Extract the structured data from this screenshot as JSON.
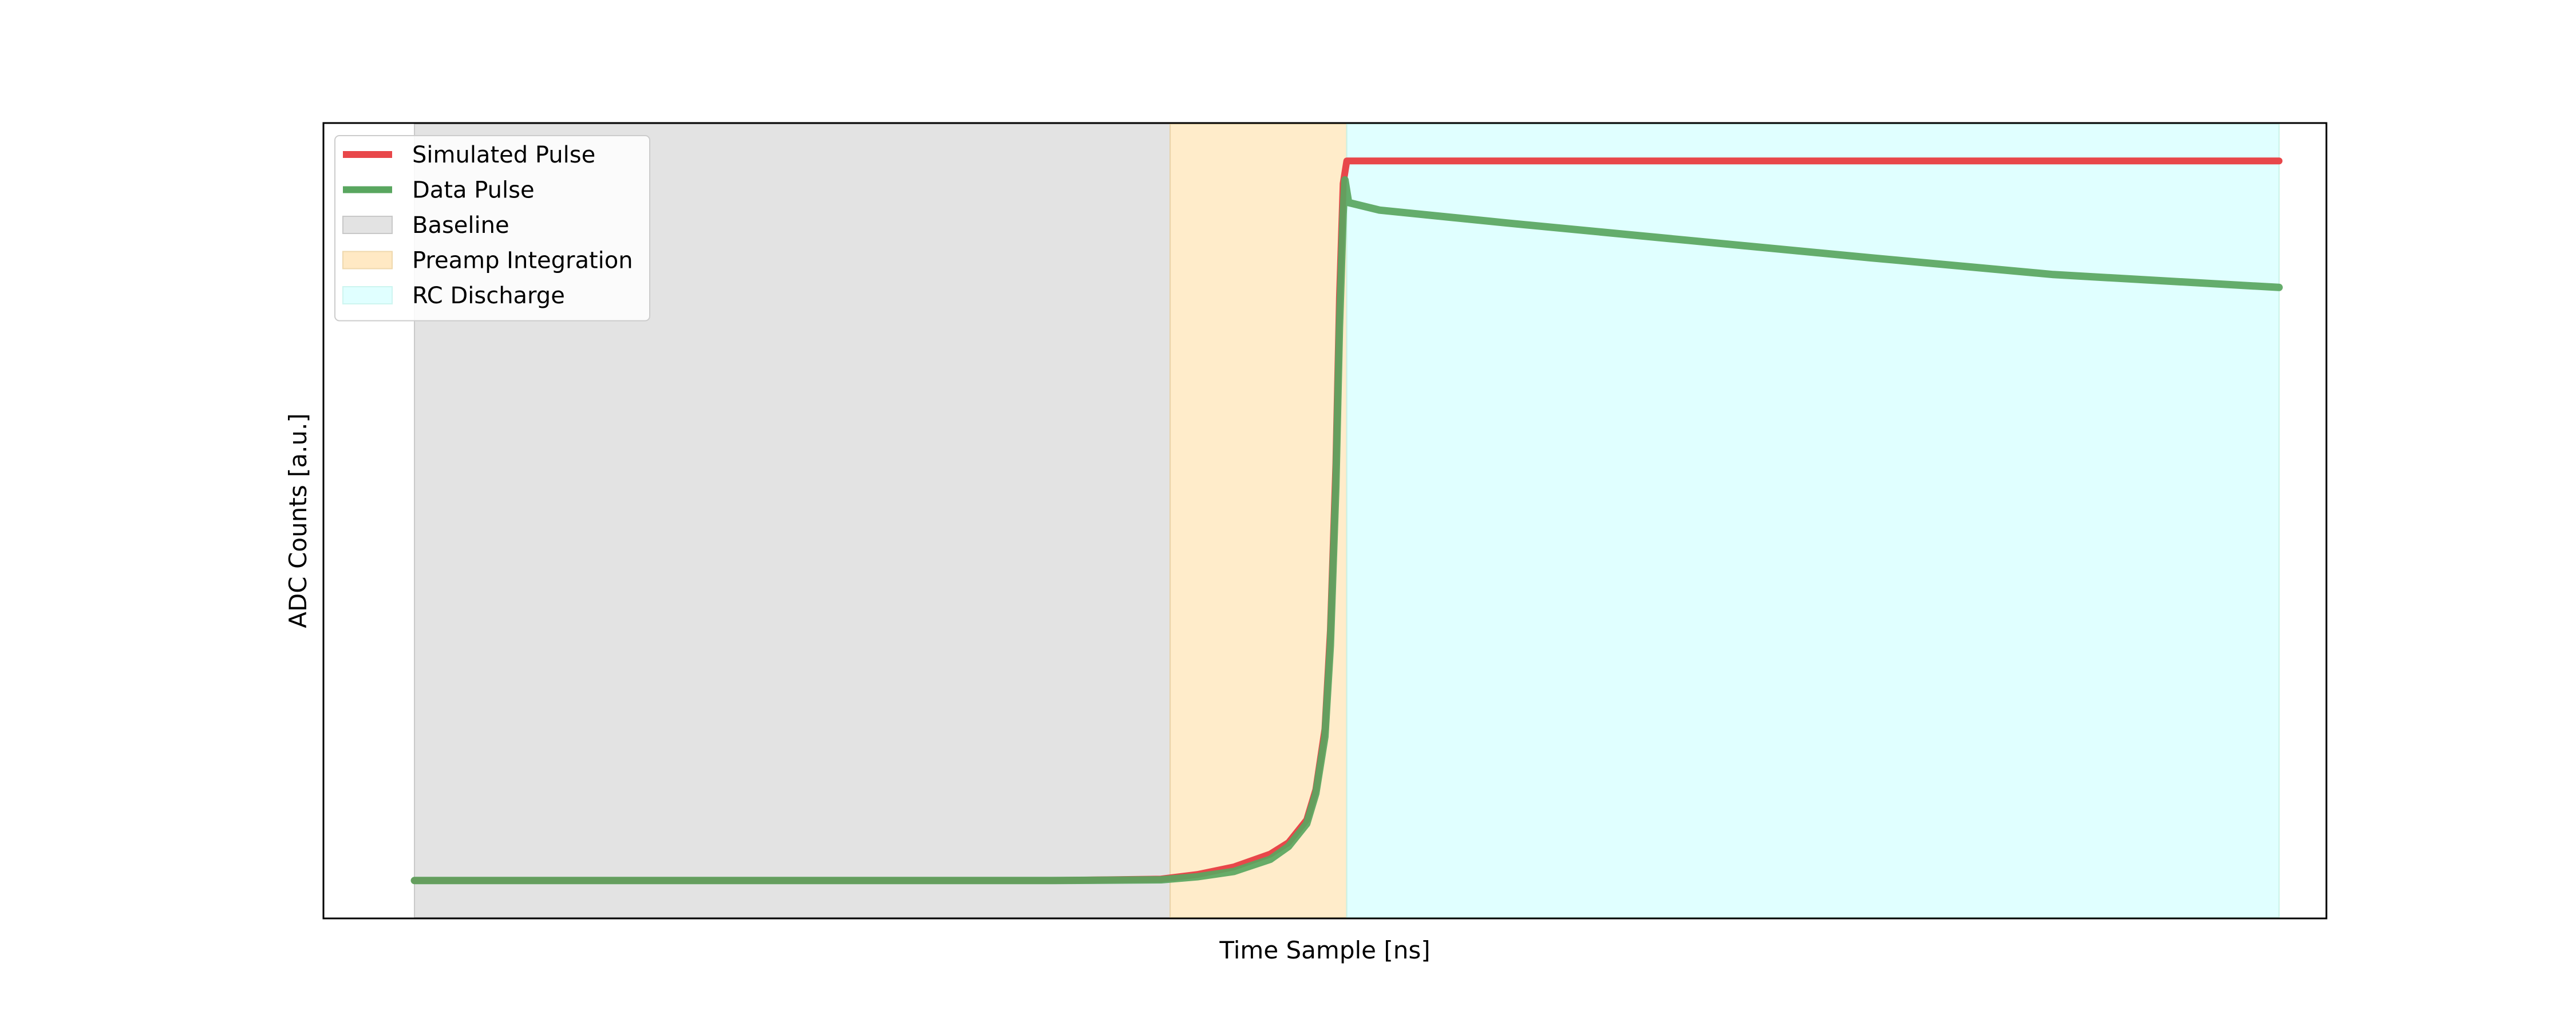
{
  "chart_data": {
    "type": "line",
    "xlabel": "Time Sample [ns]",
    "ylabel": "ADC Counts [a.u.]",
    "x_ticks_shown": false,
    "y_ticks_shown": false,
    "grid": false,
    "legend_placement": "upper-left",
    "xlim": [
      0,
      1100
    ],
    "ylim": [
      0,
      1.05
    ],
    "regions": [
      {
        "name": "Baseline",
        "x_start": 50,
        "x_end": 465,
        "color": "#d3d3d3"
      },
      {
        "name": "Preamp Integration",
        "x_start": 465,
        "x_end": 562,
        "color": "#ffe4b5"
      },
      {
        "name": "RC Discharge",
        "x_start": 562,
        "x_end": 1074,
        "color": "#ccffff"
      }
    ],
    "series": [
      {
        "name": "Simulated Pulse",
        "color": "#e8474a",
        "x": [
          50,
          100,
          200,
          300,
          400,
          460,
          480,
          500,
          520,
          530,
          540,
          545,
          550,
          553,
          556,
          558,
          560,
          562,
          700,
          900,
          1074
        ],
        "y": [
          0.05,
          0.05,
          0.05,
          0.05,
          0.05,
          0.052,
          0.058,
          0.068,
          0.085,
          0.1,
          0.13,
          0.17,
          0.25,
          0.38,
          0.6,
          0.82,
          0.97,
          1.0,
          1.0,
          1.0,
          1.0
        ]
      },
      {
        "name": "Data Pulse",
        "color": "#59a65f",
        "x": [
          50,
          100,
          200,
          300,
          400,
          460,
          480,
          500,
          520,
          530,
          540,
          545,
          550,
          553,
          556,
          558,
          560,
          561,
          563,
          580,
          650,
          750,
          850,
          950,
          1074
        ],
        "y": [
          0.05,
          0.05,
          0.05,
          0.05,
          0.05,
          0.051,
          0.055,
          0.062,
          0.078,
          0.095,
          0.125,
          0.165,
          0.24,
          0.36,
          0.57,
          0.78,
          0.93,
          0.975,
          0.945,
          0.935,
          0.918,
          0.895,
          0.872,
          0.85,
          0.833
        ]
      }
    ]
  },
  "legend": {
    "items": [
      {
        "label": "Simulated Pulse",
        "kind": "line",
        "color": "#e8474a"
      },
      {
        "label": "Data Pulse",
        "kind": "line",
        "color": "#59a65f"
      },
      {
        "label": "Baseline",
        "kind": "patch",
        "color": "#e3e3e3"
      },
      {
        "label": "Preamp Integration",
        "kind": "patch",
        "color": "#ffe9c4"
      },
      {
        "label": "RC Discharge",
        "kind": "patch",
        "color": "#e0ffff"
      }
    ]
  }
}
